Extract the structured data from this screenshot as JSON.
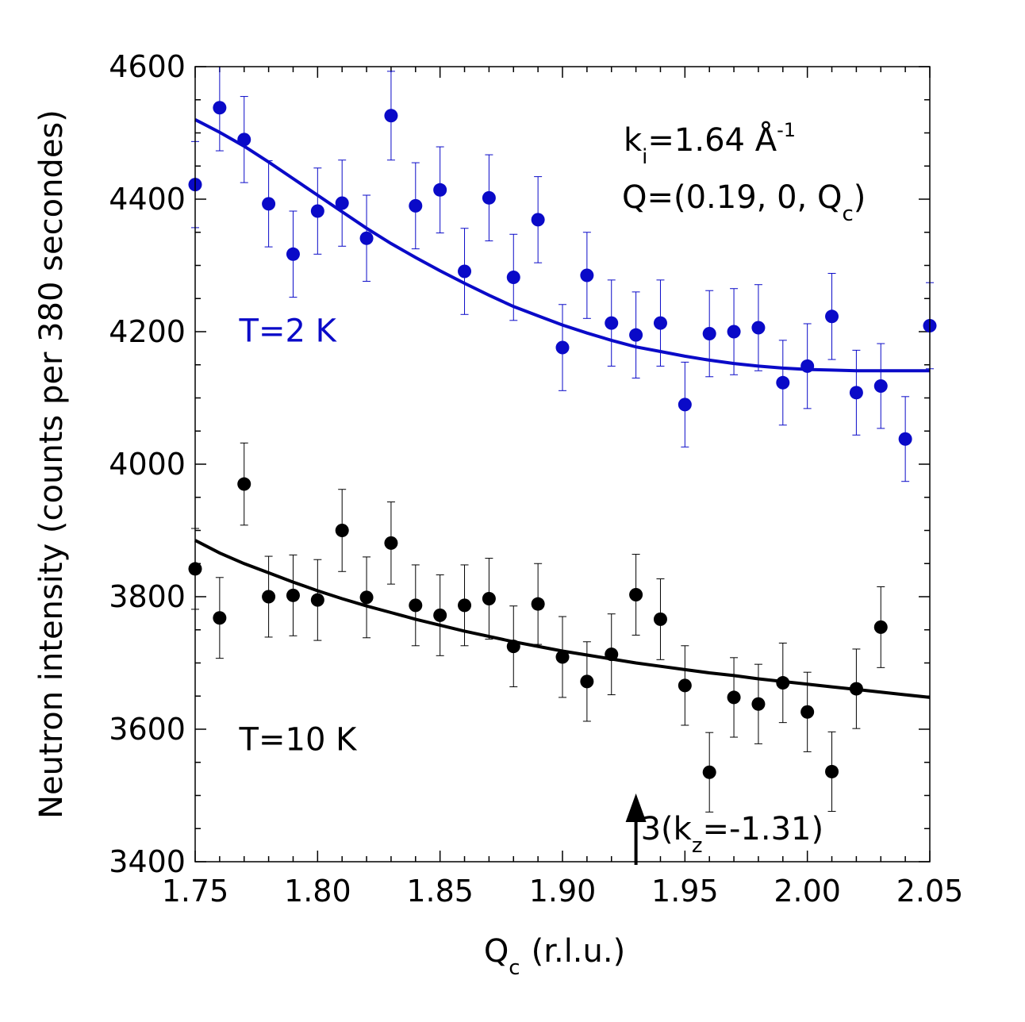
{
  "chart_data": {
    "type": "scatter",
    "xlabel": "Q",
    "xlabel_sub": "c",
    "xlabel_unit": "(r.l.u.)",
    "ylabel": "Neutron intensity (counts per 380 secondes)",
    "xlim": [
      1.75,
      2.05
    ],
    "ylim": [
      3400,
      4600
    ],
    "xticks": [
      "1.75",
      "1.80",
      "1.85",
      "1.90",
      "1.95",
      "2.00",
      "2.05"
    ],
    "yticks": [
      "3400",
      "3600",
      "3800",
      "4000",
      "4200",
      "4400",
      "4600"
    ],
    "annotations": {
      "ki_prefix": "k",
      "ki_sub": "i",
      "ki_value": "=1.64 Å",
      "ki_sup": "-1",
      "q_prefix": "Q=(0.19, 0, Q",
      "q_sub": "c",
      "q_suffix": ")",
      "arrow_prefix": "3(k",
      "arrow_sub": "z",
      "arrow_suffix": "=-1.31)",
      "arrow_x": 1.93
    },
    "series": [
      {
        "name": "T=2 K",
        "color": "#0a0ac8",
        "points": [
          {
            "x": 1.75,
            "y": 4422,
            "err": 65
          },
          {
            "x": 1.76,
            "y": 4538,
            "err": 65
          },
          {
            "x": 1.77,
            "y": 4490,
            "err": 65
          },
          {
            "x": 1.78,
            "y": 4393,
            "err": 65
          },
          {
            "x": 1.79,
            "y": 4317,
            "err": 65
          },
          {
            "x": 1.8,
            "y": 4382,
            "err": 65
          },
          {
            "x": 1.81,
            "y": 4394,
            "err": 65
          },
          {
            "x": 1.82,
            "y": 4341,
            "err": 65
          },
          {
            "x": 1.83,
            "y": 4526,
            "err": 67
          },
          {
            "x": 1.84,
            "y": 4390,
            "err": 65
          },
          {
            "x": 1.85,
            "y": 4414,
            "err": 65
          },
          {
            "x": 1.86,
            "y": 4291,
            "err": 65
          },
          {
            "x": 1.87,
            "y": 4402,
            "err": 65
          },
          {
            "x": 1.88,
            "y": 4282,
            "err": 65
          },
          {
            "x": 1.89,
            "y": 4369,
            "err": 65
          },
          {
            "x": 1.9,
            "y": 4176,
            "err": 65
          },
          {
            "x": 1.91,
            "y": 4285,
            "err": 65
          },
          {
            "x": 1.92,
            "y": 4213,
            "err": 65
          },
          {
            "x": 1.93,
            "y": 4195,
            "err": 65
          },
          {
            "x": 1.94,
            "y": 4213,
            "err": 65
          },
          {
            "x": 1.95,
            "y": 4090,
            "err": 64
          },
          {
            "x": 1.96,
            "y": 4197,
            "err": 65
          },
          {
            "x": 1.97,
            "y": 4200,
            "err": 65
          },
          {
            "x": 1.98,
            "y": 4206,
            "err": 65
          },
          {
            "x": 1.99,
            "y": 4123,
            "err": 64
          },
          {
            "x": 2.0,
            "y": 4148,
            "err": 64
          },
          {
            "x": 2.01,
            "y": 4223,
            "err": 65
          },
          {
            "x": 2.02,
            "y": 4108,
            "err": 64
          },
          {
            "x": 2.03,
            "y": 4118,
            "err": 64
          },
          {
            "x": 2.04,
            "y": 4038,
            "err": 64
          },
          {
            "x": 2.05,
            "y": 4209,
            "err": 65
          }
        ],
        "fit": [
          {
            "x": 1.75,
            "y": 4520
          },
          {
            "x": 1.76,
            "y": 4501
          },
          {
            "x": 1.77,
            "y": 4480
          },
          {
            "x": 1.78,
            "y": 4456
          },
          {
            "x": 1.79,
            "y": 4431
          },
          {
            "x": 1.8,
            "y": 4406
          },
          {
            "x": 1.81,
            "y": 4381
          },
          {
            "x": 1.82,
            "y": 4356
          },
          {
            "x": 1.83,
            "y": 4333
          },
          {
            "x": 1.84,
            "y": 4312
          },
          {
            "x": 1.85,
            "y": 4292
          },
          {
            "x": 1.86,
            "y": 4273
          },
          {
            "x": 1.87,
            "y": 4255
          },
          {
            "x": 1.88,
            "y": 4238
          },
          {
            "x": 1.89,
            "y": 4224
          },
          {
            "x": 1.9,
            "y": 4210
          },
          {
            "x": 1.91,
            "y": 4198
          },
          {
            "x": 1.92,
            "y": 4187
          },
          {
            "x": 1.93,
            "y": 4177
          },
          {
            "x": 1.94,
            "y": 4170
          },
          {
            "x": 1.95,
            "y": 4163
          },
          {
            "x": 1.96,
            "y": 4157
          },
          {
            "x": 1.97,
            "y": 4152
          },
          {
            "x": 1.98,
            "y": 4148
          },
          {
            "x": 1.99,
            "y": 4145
          },
          {
            "x": 2.0,
            "y": 4143
          },
          {
            "x": 2.01,
            "y": 4142
          },
          {
            "x": 2.02,
            "y": 4141
          },
          {
            "x": 2.03,
            "y": 4141
          },
          {
            "x": 2.04,
            "y": 4141
          },
          {
            "x": 2.05,
            "y": 4141
          }
        ],
        "label_pos": {
          "x": 1.768,
          "y": 4185
        }
      },
      {
        "name": "T=10 K",
        "color": "#000000",
        "points": [
          {
            "x": 1.75,
            "y": 3842,
            "err": 61
          },
          {
            "x": 1.76,
            "y": 3768,
            "err": 61
          },
          {
            "x": 1.77,
            "y": 3970,
            "err": 62
          },
          {
            "x": 1.78,
            "y": 3800,
            "err": 61
          },
          {
            "x": 1.79,
            "y": 3802,
            "err": 61
          },
          {
            "x": 1.8,
            "y": 3795,
            "err": 61
          },
          {
            "x": 1.81,
            "y": 3900,
            "err": 62
          },
          {
            "x": 1.82,
            "y": 3799,
            "err": 61
          },
          {
            "x": 1.83,
            "y": 3881,
            "err": 62
          },
          {
            "x": 1.84,
            "y": 3787,
            "err": 61
          },
          {
            "x": 1.85,
            "y": 3772,
            "err": 61
          },
          {
            "x": 1.86,
            "y": 3787,
            "err": 61
          },
          {
            "x": 1.87,
            "y": 3797,
            "err": 61
          },
          {
            "x": 1.88,
            "y": 3725,
            "err": 61
          },
          {
            "x": 1.89,
            "y": 3789,
            "err": 61
          },
          {
            "x": 1.9,
            "y": 3709,
            "err": 61
          },
          {
            "x": 1.91,
            "y": 3672,
            "err": 60
          },
          {
            "x": 1.92,
            "y": 3713,
            "err": 61
          },
          {
            "x": 1.93,
            "y": 3803,
            "err": 61
          },
          {
            "x": 1.94,
            "y": 3766,
            "err": 61
          },
          {
            "x": 1.95,
            "y": 3666,
            "err": 60
          },
          {
            "x": 1.96,
            "y": 3535,
            "err": 60
          },
          {
            "x": 1.97,
            "y": 3648,
            "err": 60
          },
          {
            "x": 1.98,
            "y": 3638,
            "err": 60
          },
          {
            "x": 1.99,
            "y": 3670,
            "err": 60
          },
          {
            "x": 2.0,
            "y": 3626,
            "err": 60
          },
          {
            "x": 2.01,
            "y": 3536,
            "err": 60
          },
          {
            "x": 2.02,
            "y": 3661,
            "err": 60
          },
          {
            "x": 2.03,
            "y": 3754,
            "err": 61
          }
        ],
        "fit": [
          {
            "x": 1.75,
            "y": 3885
          },
          {
            "x": 1.76,
            "y": 3866
          },
          {
            "x": 1.77,
            "y": 3850
          },
          {
            "x": 1.78,
            "y": 3836
          },
          {
            "x": 1.79,
            "y": 3822
          },
          {
            "x": 1.8,
            "y": 3809
          },
          {
            "x": 1.81,
            "y": 3797
          },
          {
            "x": 1.82,
            "y": 3786
          },
          {
            "x": 1.83,
            "y": 3776
          },
          {
            "x": 1.84,
            "y": 3766
          },
          {
            "x": 1.85,
            "y": 3757
          },
          {
            "x": 1.86,
            "y": 3748
          },
          {
            "x": 1.87,
            "y": 3740
          },
          {
            "x": 1.88,
            "y": 3732
          },
          {
            "x": 1.89,
            "y": 3725
          },
          {
            "x": 1.9,
            "y": 3718
          },
          {
            "x": 1.91,
            "y": 3712
          },
          {
            "x": 1.92,
            "y": 3706
          },
          {
            "x": 1.93,
            "y": 3700
          },
          {
            "x": 1.94,
            "y": 3695
          },
          {
            "x": 1.95,
            "y": 3690
          },
          {
            "x": 1.96,
            "y": 3685
          },
          {
            "x": 1.97,
            "y": 3681
          },
          {
            "x": 1.98,
            "y": 3676
          },
          {
            "x": 1.99,
            "y": 3672
          },
          {
            "x": 2.0,
            "y": 3668
          },
          {
            "x": 2.01,
            "y": 3664
          },
          {
            "x": 2.02,
            "y": 3660
          },
          {
            "x": 2.03,
            "y": 3656
          },
          {
            "x": 2.04,
            "y": 3652
          },
          {
            "x": 2.05,
            "y": 3648
          }
        ],
        "label_pos": {
          "x": 1.768,
          "y": 3568
        }
      }
    ]
  }
}
